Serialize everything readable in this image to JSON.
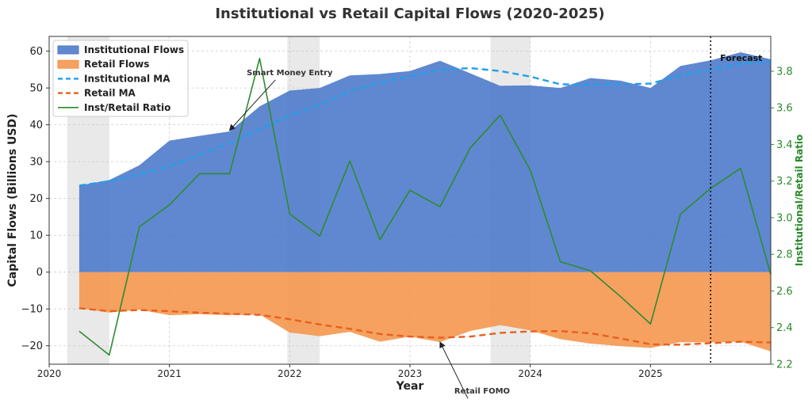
{
  "chart_data": {
    "type": "area",
    "title": "Institutional vs Retail Capital Flows (2020-2025)",
    "xlabel": "Year",
    "ylabel": "Capital Flows (Billions USD)",
    "ylabel_right": "Institutional/Retail Ratio",
    "xlim": [
      2020.0,
      2026.0
    ],
    "ylim": [
      -25,
      64
    ],
    "ylim_right": [
      2.2,
      3.99
    ],
    "x_ticks": [
      2020,
      2021,
      2022,
      2023,
      2024,
      2025
    ],
    "x_tick_labels": [
      "2020",
      "2021",
      "2022",
      "2023",
      "2024",
      "2025"
    ],
    "y_ticks": [
      -20,
      -10,
      0,
      10,
      20,
      30,
      40,
      50,
      60
    ],
    "y_tick_labels": [
      "−20",
      "−10",
      "0",
      "10",
      "20",
      "30",
      "40",
      "50",
      "60"
    ],
    "y_right_ticks": [
      2.2,
      2.4,
      2.6,
      2.8,
      3.0,
      3.2,
      3.4,
      3.6,
      3.8
    ],
    "y_right_tick_labels": [
      "2.2",
      "2.4",
      "2.6",
      "2.8",
      "3.0",
      "3.2",
      "3.4",
      "3.6",
      "3.8"
    ],
    "x": [
      2020.25,
      2020.5,
      2020.75,
      2021.0,
      2021.25,
      2021.5,
      2021.75,
      2022.0,
      2022.25,
      2022.5,
      2022.75,
      2023.0,
      2023.25,
      2023.5,
      2023.75,
      2024.0,
      2024.25,
      2024.5,
      2024.75,
      2025.0,
      2025.25,
      2025.5,
      2025.75,
      2026.0
    ],
    "series": [
      {
        "name": "Institutional Flows",
        "kind": "area",
        "color": "#4a77c9",
        "values": [
          23.5,
          25.0,
          29.0,
          35.7,
          37.0,
          38.2,
          45.0,
          49.3,
          50.0,
          53.4,
          53.8,
          54.6,
          57.4,
          54.0,
          50.6,
          50.7,
          50.0,
          52.7,
          52.0,
          50.0,
          56.0,
          57.5,
          59.7,
          57.8
        ]
      },
      {
        "name": "Retail Flows",
        "kind": "area",
        "color": "#f5944a",
        "values": [
          -9.8,
          -11.0,
          -10.2,
          -11.7,
          -11.4,
          -11.7,
          -11.5,
          -16.4,
          -17.4,
          -16.2,
          -18.9,
          -17.5,
          -19.0,
          -16.0,
          -14.4,
          -15.8,
          -18.2,
          -19.4,
          -20.1,
          -20.6,
          -19.0,
          -19.1,
          -18.9,
          -21.5
        ]
      },
      {
        "name": "Institutional MA",
        "kind": "dashed-line",
        "color": "#1ea0e8",
        "values": [
          23.5,
          24.7,
          26.5,
          28.8,
          31.8,
          35.0,
          38.8,
          42.5,
          45.5,
          49.1,
          51.5,
          53.2,
          55.0,
          55.4,
          54.6,
          53.1,
          51.0,
          50.9,
          51.0,
          51.2,
          53.4,
          55.0,
          56.6,
          57.3
        ]
      },
      {
        "name": "Retail MA",
        "kind": "dashed-line",
        "color": "#e8601c",
        "values": [
          -9.8,
          -10.6,
          -10.3,
          -10.6,
          -11.0,
          -11.3,
          -11.6,
          -12.8,
          -14.2,
          -15.4,
          -16.8,
          -17.5,
          -17.8,
          -17.5,
          -16.5,
          -16.1,
          -16.0,
          -16.6,
          -18.0,
          -19.6,
          -19.7,
          -19.3,
          -18.9,
          -19.1
        ]
      },
      {
        "name": "Inst/Retail Ratio",
        "kind": "line",
        "axis": "right",
        "color": "#2e8b2e",
        "values": [
          2.38,
          2.25,
          2.95,
          3.07,
          3.24,
          3.24,
          3.87,
          3.02,
          2.9,
          3.31,
          2.88,
          3.15,
          3.06,
          3.38,
          3.56,
          3.26,
          2.76,
          2.71,
          2.57,
          2.42,
          3.02,
          3.16,
          3.27,
          2.69
        ]
      }
    ],
    "shaded_periods": [
      [
        2020.15,
        2020.5
      ],
      [
        2021.98,
        2022.25
      ],
      [
        2023.67,
        2024.0
      ]
    ],
    "forecast_start": 2025.5,
    "forecast_label": "Forecast",
    "annotations": [
      {
        "text": "Smart Money Entry",
        "x": 2021.5,
        "y": 38.5,
        "text_x": 2022.0,
        "text_y": 53.5
      },
      {
        "text": "Retail FOMO",
        "x": 2023.25,
        "y": -19.0,
        "text_x": 2023.6,
        "text_y": -33.0
      }
    ],
    "legend_position": "top-left",
    "grid": true
  }
}
